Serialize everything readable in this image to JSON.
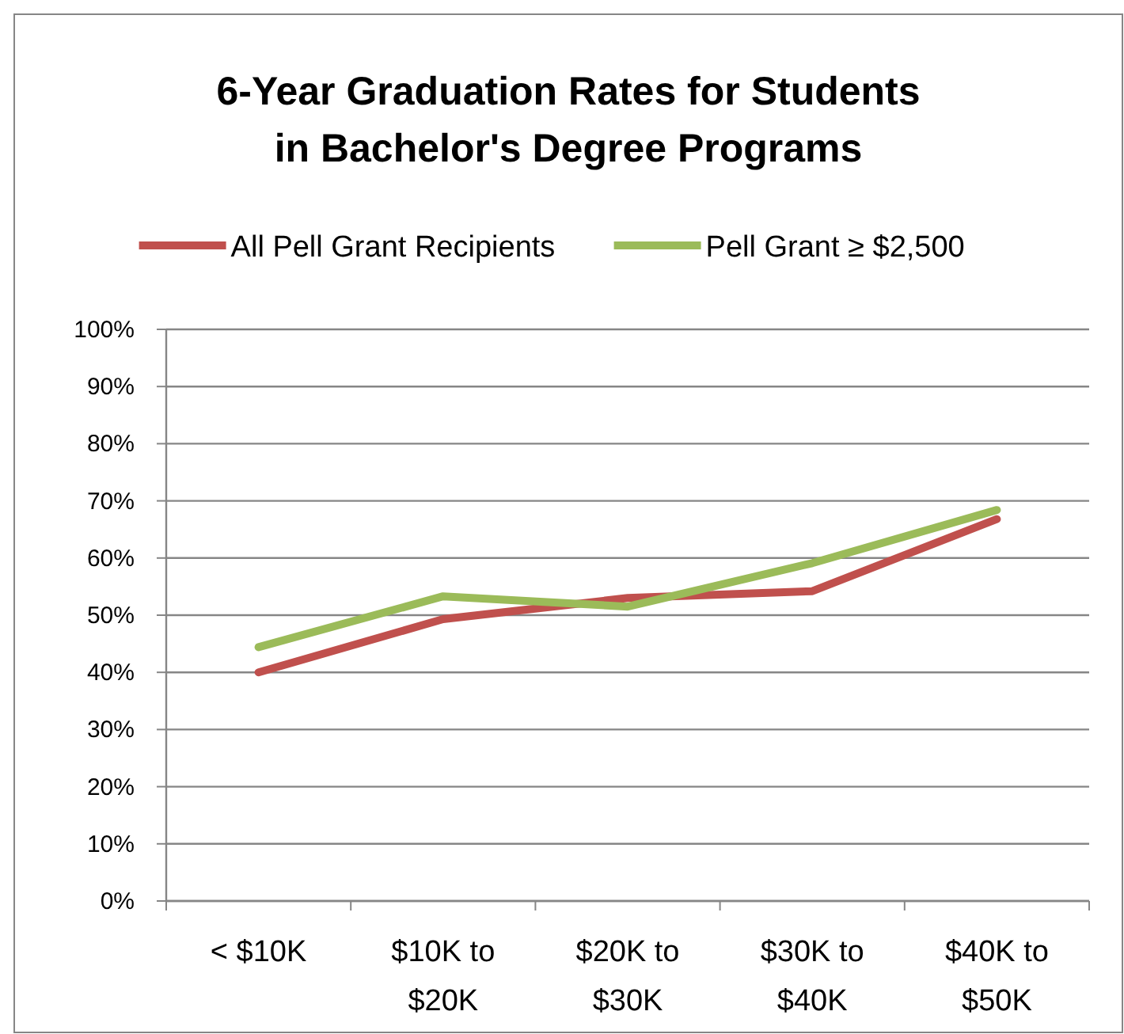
{
  "chart_data": {
    "type": "line",
    "title": "6-Year Graduation Rates for Students in Bachelor's Degree Programs",
    "categories": [
      "< $10K",
      "$10K to $20K",
      "$20K to $30K",
      "$30K to $40K",
      "$40K to $50K"
    ],
    "series": [
      {
        "name": "All Pell Grant Recipients",
        "color": "#c0504d",
        "values": [
          40,
          49.3,
          53,
          54.2,
          66.8
        ]
      },
      {
        "name": "Pell Grant ≥ $2,500",
        "color": "#9bbb59",
        "values": [
          44.4,
          53.3,
          51.5,
          59.1,
          68.4
        ]
      }
    ],
    "ylim": [
      0,
      100
    ],
    "yticks": [
      {
        "value": 0,
        "label": "0%"
      },
      {
        "value": 10,
        "label": "10%"
      },
      {
        "value": 20,
        "label": "20%"
      },
      {
        "value": 30,
        "label": "30%"
      },
      {
        "value": 40,
        "label": "40%"
      },
      {
        "value": 50,
        "label": "50%"
      },
      {
        "value": 60,
        "label": "60%"
      },
      {
        "value": 70,
        "label": "70%"
      },
      {
        "value": 80,
        "label": "80%"
      },
      {
        "value": 90,
        "label": "90%"
      },
      {
        "value": 100,
        "label": "100%"
      }
    ],
    "grid": "y",
    "legend": "top",
    "marker": "none",
    "line_style": "solid"
  }
}
